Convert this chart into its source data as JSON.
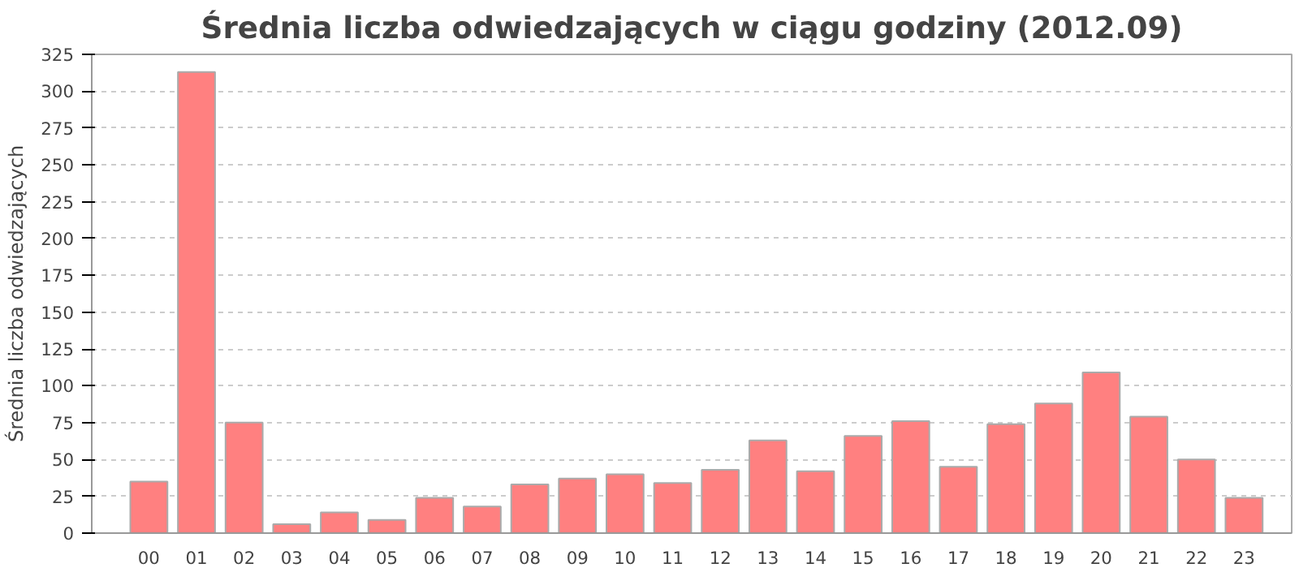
{
  "chart_data": {
    "type": "bar",
    "title": "Średnia liczba odwiedzających w ciągu godziny (2012.09)",
    "ylabel": "Średnia liczba odwiedzających",
    "categories": [
      "00",
      "01",
      "02",
      "03",
      "04",
      "05",
      "06",
      "07",
      "08",
      "09",
      "10",
      "11",
      "12",
      "13",
      "14",
      "15",
      "16",
      "17",
      "18",
      "19",
      "20",
      "21",
      "22",
      "23"
    ],
    "values": [
      35,
      313,
      75,
      6,
      14,
      9,
      24,
      18,
      33,
      37,
      40,
      34,
      43,
      63,
      42,
      66,
      76,
      45,
      74,
      88,
      109,
      79,
      50,
      24
    ],
    "color": "#ff8080",
    "ylim": [
      0,
      325
    ],
    "yticks": [
      0,
      25,
      50,
      75,
      100,
      125,
      150,
      175,
      200,
      225,
      250,
      275,
      300,
      325
    ],
    "grid": "y"
  }
}
